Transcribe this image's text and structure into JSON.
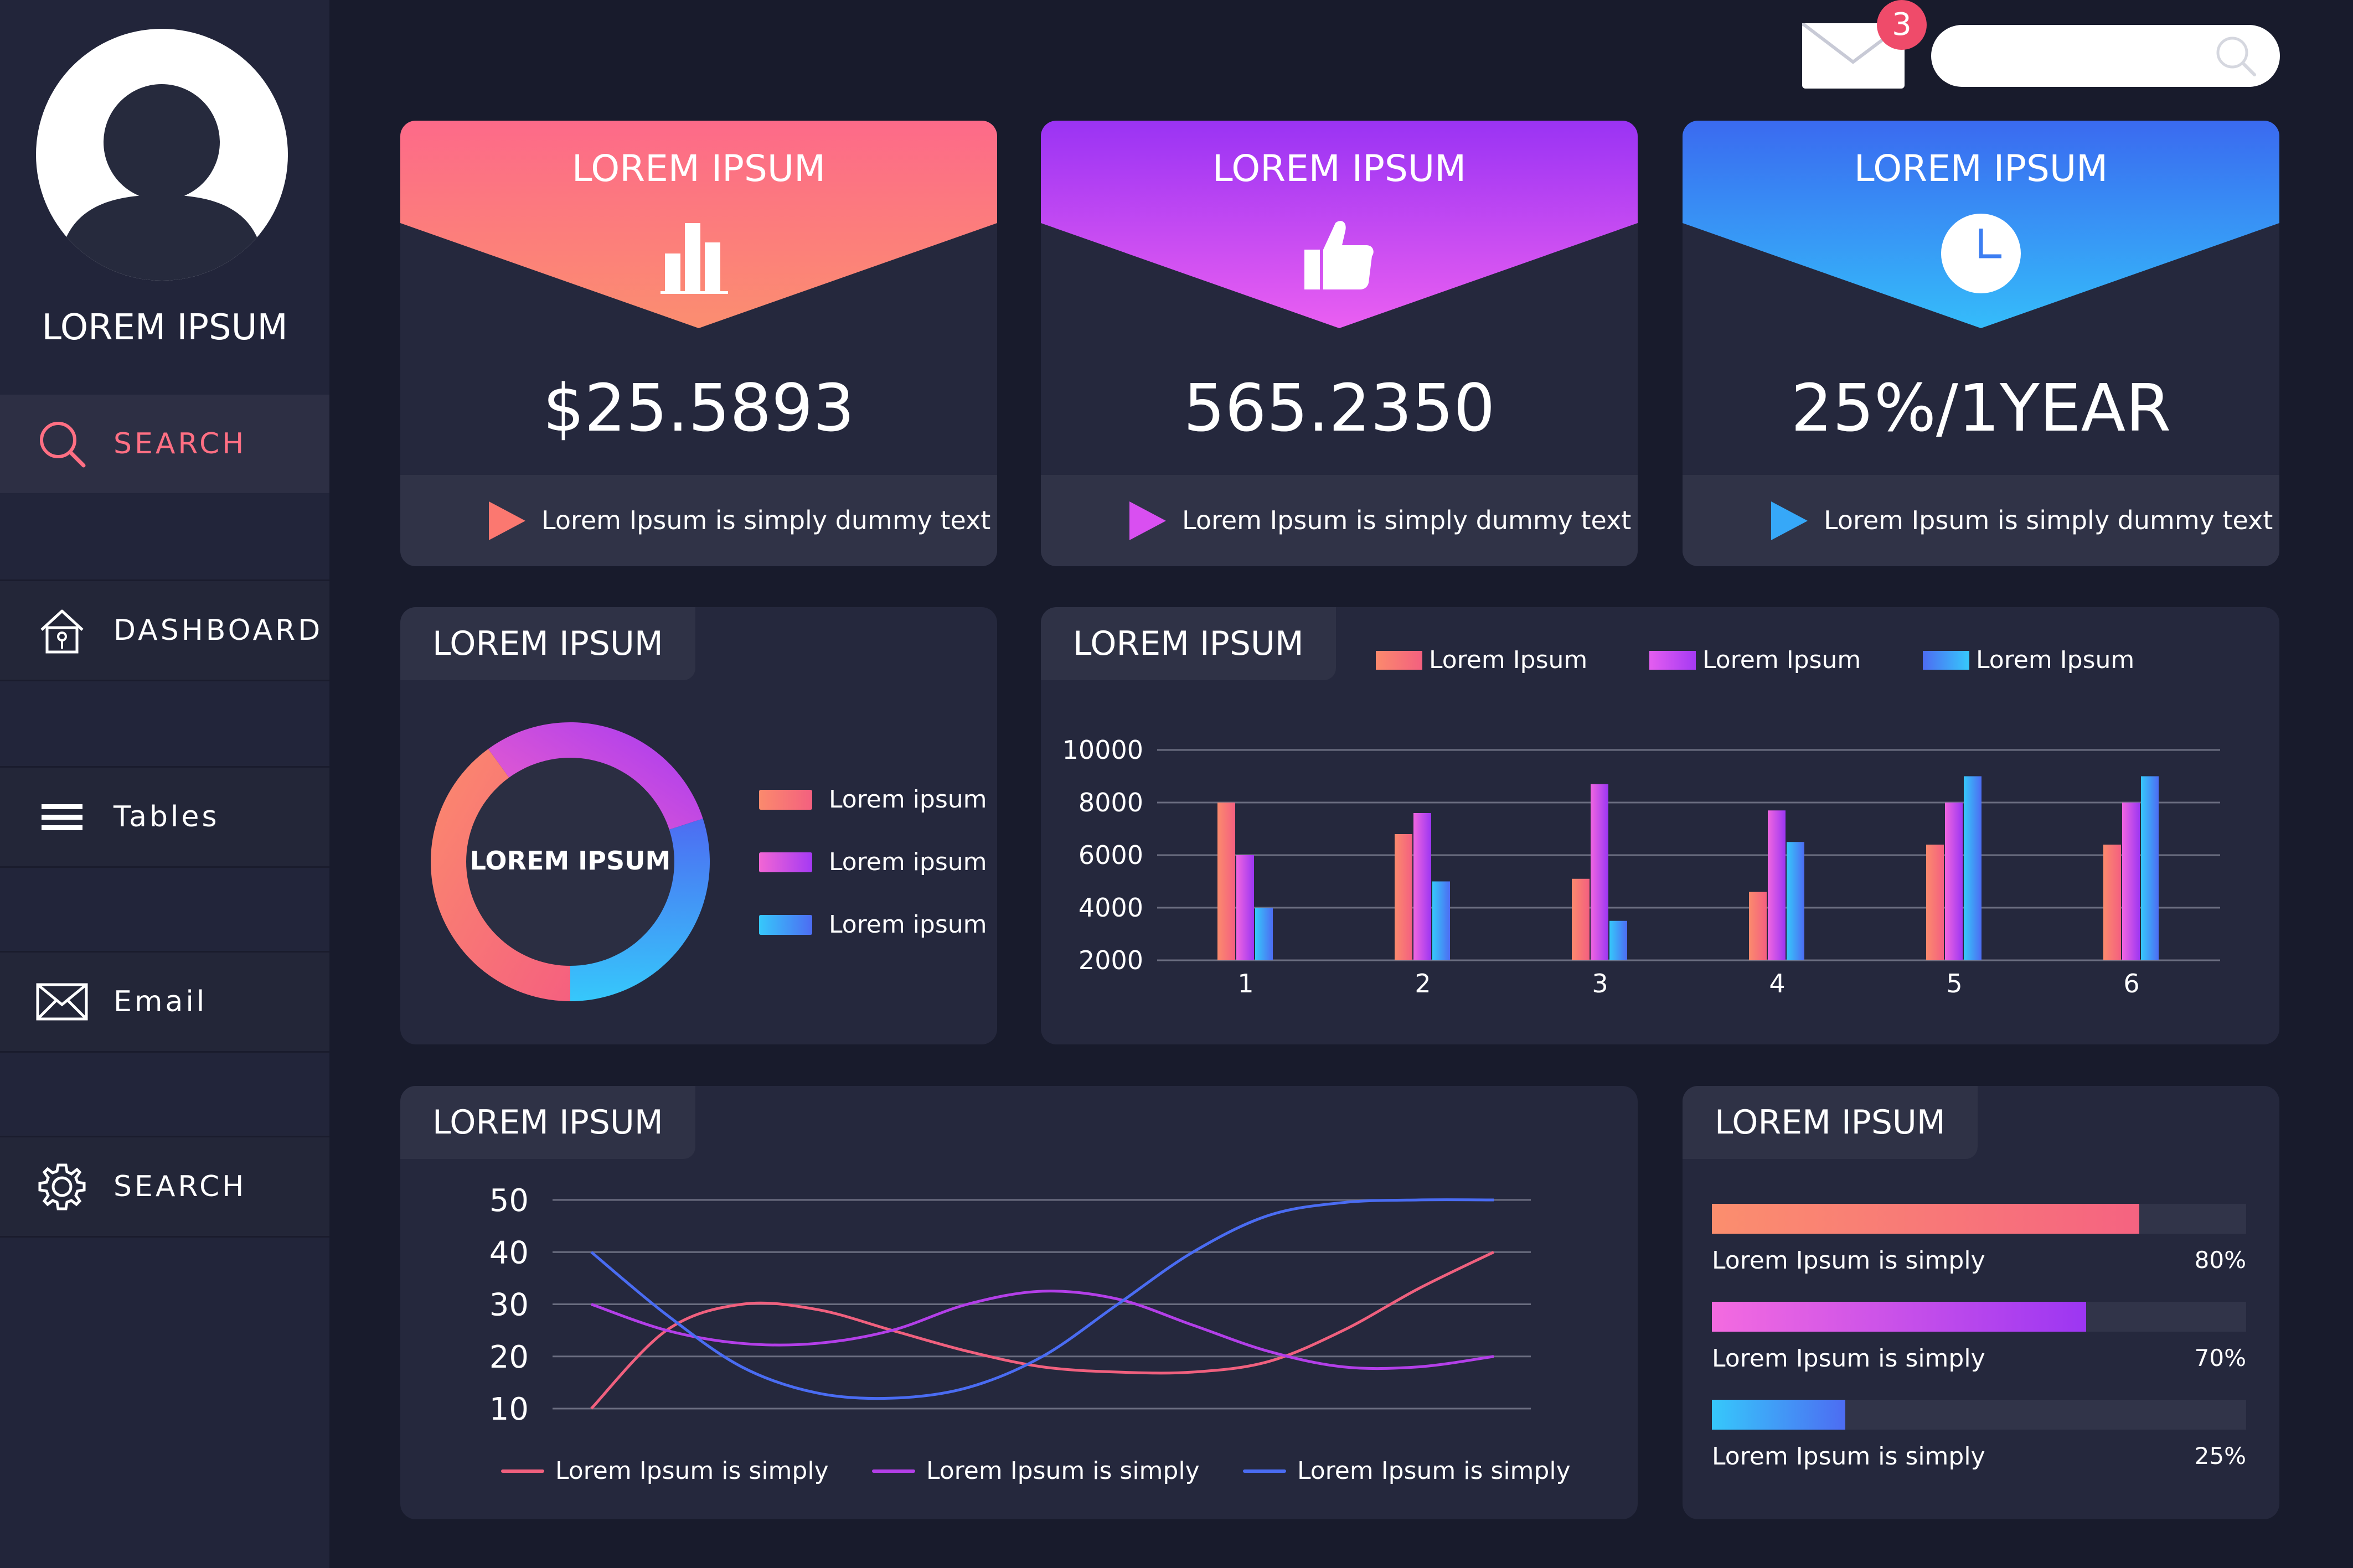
{
  "sidebar": {
    "username": "LOREM IPSUM",
    "items": [
      {
        "label": "SEARCH",
        "icon": "search-icon",
        "active": true
      },
      {
        "label": "DASHBOARD",
        "icon": "home-icon",
        "active": false
      },
      {
        "label": "Tables",
        "icon": "menu-icon",
        "active": false
      },
      {
        "label": "Email",
        "icon": "mail-icon",
        "active": false
      },
      {
        "label": "SEARCH",
        "icon": "gear-icon",
        "active": false
      }
    ]
  },
  "header": {
    "mail_badge": "3",
    "search_placeholder": ""
  },
  "cards": [
    {
      "title": "LOREM IPSUM",
      "icon": "bar-chart-icon",
      "value": "$25.5893",
      "footer": "Lorem Ipsum is simply dummy text",
      "color_top": "#fd6a89",
      "color_bottom": "#fb8972"
    },
    {
      "title": "LOREM IPSUM",
      "icon": "thumbs-up-icon",
      "value": "565.2350",
      "footer": "Lorem Ipsum is simply dummy text",
      "color_top": "#9a33f3",
      "color_bottom": "#e258f0"
    },
    {
      "title": "LOREM IPSUM",
      "icon": "clock-icon",
      "value": "25%/1YEAR",
      "footer": "Lorem Ipsum is simply dummy text",
      "color_top": "#3b6ef0",
      "color_bottom": "#35b3fa"
    }
  ],
  "donut_panel": {
    "title": "LOREM IPSUM",
    "center_label": "LOREM IPSUM",
    "legend": [
      "Lorem ipsum",
      "Lorem ipsum",
      "Lorem ipsum"
    ]
  },
  "bar_panel": {
    "title": "LOREM IPSUM",
    "legend": [
      "Lorem Ipsum",
      "Lorem Ipsum",
      "Lorem Ipsum"
    ]
  },
  "line_panel": {
    "title": "LOREM IPSUM",
    "legend": [
      "Lorem Ipsum is simply",
      "Lorem Ipsum is simply",
      "Lorem Ipsum is simply"
    ]
  },
  "progress_panel": {
    "title": "LOREM IPSUM",
    "items": [
      {
        "label": "Lorem Ipsum is simply",
        "pct_text": "80%",
        "value": 0.8
      },
      {
        "label": "Lorem Ipsum is simply",
        "pct_text": "70%",
        "value": 0.7
      },
      {
        "label": "Lorem Ipsum is simply",
        "pct_text": "25%",
        "value": 0.25
      }
    ]
  },
  "colors": {
    "bg": "#181b2c",
    "panel": "#25283d",
    "coral": "#fb7b7c",
    "purple": "#c64bf3",
    "blue": "#34a7f8",
    "line_pink": "#f0607e",
    "line_purple": "#b33fe8",
    "line_blue": "#4a6cf2"
  },
  "chart_data": [
    {
      "type": "pie",
      "title": "LOREM IPSUM",
      "labels": [
        "Lorem ipsum",
        "Lorem ipsum",
        "Lorem ipsum"
      ],
      "values": [
        40,
        30,
        30
      ]
    },
    {
      "type": "bar",
      "title": "LOREM IPSUM",
      "categories": [
        "1",
        "2",
        "3",
        "4",
        "5",
        "6"
      ],
      "series": [
        {
          "name": "Lorem Ipsum",
          "values": [
            8000,
            6800,
            5100,
            4600,
            6400,
            6400
          ]
        },
        {
          "name": "Lorem Ipsum",
          "values": [
            6000,
            7600,
            8700,
            7700,
            8000,
            8000
          ]
        },
        {
          "name": "Lorem Ipsum",
          "values": [
            4000,
            5000,
            3500,
            6500,
            9000,
            9000
          ]
        }
      ],
      "yticks": [
        2000,
        4000,
        6000,
        8000,
        10000
      ],
      "ylim": [
        2000,
        10000
      ]
    },
    {
      "type": "line",
      "title": "LOREM IPSUM",
      "x": [
        0,
        1,
        2,
        3,
        4,
        5,
        6,
        7,
        8,
        9,
        10,
        11,
        12
      ],
      "series": [
        {
          "name": "Lorem Ipsum is simply",
          "values": [
            10,
            25,
            30,
            29,
            25,
            21,
            18,
            17,
            17,
            19,
            25,
            33,
            40
          ]
        },
        {
          "name": "Lorem Ipsum is simply",
          "values": [
            30,
            25,
            22.5,
            22.5,
            25,
            30,
            32.5,
            31,
            26,
            21,
            18,
            18,
            20
          ]
        },
        {
          "name": "Lorem Ipsum is simply",
          "values": [
            40,
            28,
            18,
            13,
            12,
            14,
            20,
            30,
            40,
            47,
            49.5,
            50,
            50
          ]
        }
      ],
      "yticks": [
        10,
        20,
        30,
        40,
        50
      ],
      "ylim": [
        10,
        50
      ]
    }
  ]
}
